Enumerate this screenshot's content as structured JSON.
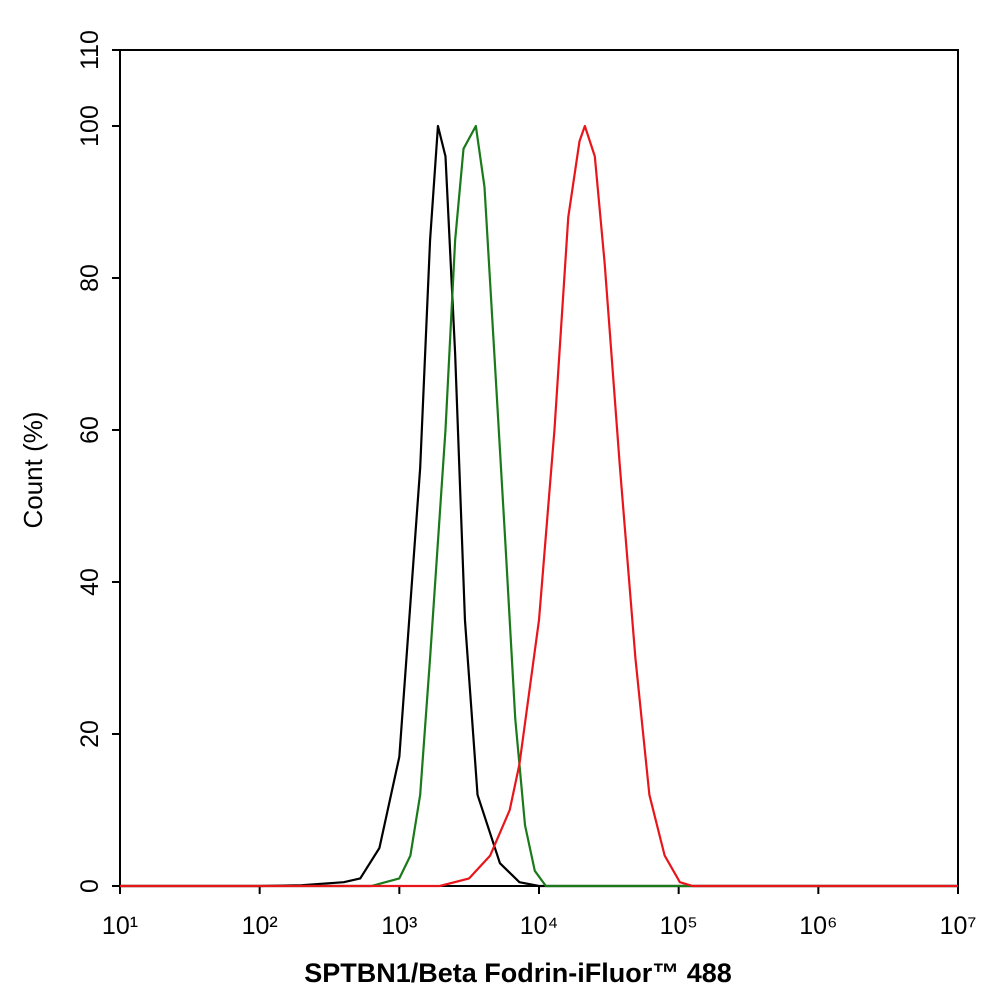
{
  "chart_data": {
    "type": "line",
    "x_label": "SPTBN1/Beta Fodrin-iFluor™ 488",
    "y_label": "Count  (%)",
    "xscale": "log",
    "xlim": [
      10,
      10000000
    ],
    "xticks": [
      {
        "value": 10,
        "label": "10¹"
      },
      {
        "value": 100,
        "label": "10²"
      },
      {
        "value": 1000,
        "label": "10³"
      },
      {
        "value": 10000,
        "label": "10⁴"
      },
      {
        "value": 100000,
        "label": "10⁵"
      },
      {
        "value": 1000000,
        "label": "10⁶"
      },
      {
        "value": 10000000,
        "label": "10⁷"
      }
    ],
    "ylim": [
      0,
      110
    ],
    "yticks": [
      0,
      20,
      40,
      60,
      80,
      100,
      110
    ],
    "series": [
      {
        "color": "#000000",
        "x": [
          10,
          100,
          200,
          400,
          525,
          720,
          1000,
          1410,
          1660,
          1890,
          2140,
          2510,
          2950,
          3630,
          5250,
          7240,
          10000,
          10000000
        ],
        "values": [
          0,
          0,
          0.1,
          0.5,
          1,
          5,
          17,
          55,
          85,
          100,
          96,
          70,
          35,
          12,
          3,
          0.5,
          0,
          0
        ]
      },
      {
        "color": "#1a7a1a",
        "x": [
          10,
          631,
          1000,
          1200,
          1410,
          1660,
          2140,
          2510,
          2880,
          3530,
          4070,
          4790,
          5750,
          6760,
          7940,
          9330,
          11200,
          10000000
        ],
        "values": [
          0,
          0,
          1,
          4,
          12,
          30,
          60,
          85,
          97,
          100,
          92,
          70,
          45,
          22,
          8,
          2,
          0,
          0
        ]
      },
      {
        "color": "#e8161b",
        "x": [
          10,
          1950,
          3160,
          4470,
          6170,
          7240,
          10000,
          12900,
          16200,
          19500,
          21300,
          25100,
          29500,
          38000,
          49000,
          61700,
          79400,
          102000,
          126000,
          10000000
        ],
        "values": [
          0,
          0,
          1,
          4,
          10,
          16,
          35,
          60,
          88,
          98,
          100,
          96,
          82,
          55,
          30,
          12,
          4,
          0.5,
          0,
          0
        ]
      }
    ]
  }
}
